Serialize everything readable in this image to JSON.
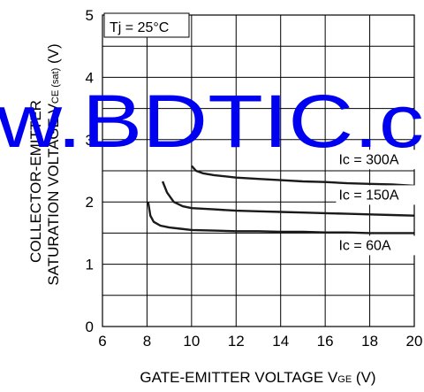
{
  "chart_data": {
    "type": "line",
    "ylabel_line1": "COLLECTOR-EMITTER",
    "ylabel_line2_main": "SATURATION VOLTAGE  V",
    "ylabel_line2_sub": "CE (sat)",
    "ylabel_line2_unit": " (V)",
    "xlabel_main": "GATE-EMITTER VOLTAGE  V",
    "xlabel_sub": "GE",
    "xlabel_unit": " (V)",
    "condition_label": "Tj = 25°C",
    "xlim": [
      6,
      20
    ],
    "ylim": [
      0,
      5
    ],
    "x_ticks": [
      "6",
      "8",
      "10",
      "12",
      "14",
      "16",
      "18",
      "20"
    ],
    "y_ticks": [
      "0",
      "1",
      "2",
      "3",
      "4",
      "5"
    ],
    "grid": true,
    "series": [
      {
        "name": "Ic = 300A",
        "x": [
          10.0,
          10.2,
          10.5,
          11,
          12,
          13,
          14,
          15,
          16,
          17,
          18,
          19,
          20
        ],
        "y": [
          2.58,
          2.5,
          2.46,
          2.43,
          2.39,
          2.37,
          2.35,
          2.33,
          2.32,
          2.3,
          2.29,
          2.28,
          2.26
        ]
      },
      {
        "name": "Ic = 150A",
        "x": [
          8.7,
          8.9,
          9.2,
          9.6,
          10,
          11,
          12,
          13,
          14,
          15,
          16,
          17,
          18,
          19,
          20
        ],
        "y": [
          2.33,
          2.15,
          2.0,
          1.93,
          1.9,
          1.88,
          1.86,
          1.85,
          1.84,
          1.83,
          1.82,
          1.81,
          1.8,
          1.79,
          1.78
        ]
      },
      {
        "name": "Ic = 60A",
        "x": [
          8.05,
          8.15,
          8.3,
          8.6,
          9,
          9.5,
          10,
          11,
          12,
          13,
          14,
          15,
          16,
          17,
          18,
          19,
          20
        ],
        "y": [
          2.0,
          1.78,
          1.68,
          1.62,
          1.59,
          1.57,
          1.55,
          1.54,
          1.53,
          1.53,
          1.52,
          1.52,
          1.51,
          1.51,
          1.5,
          1.5,
          1.5
        ]
      }
    ]
  },
  "watermark": {
    "text": "w.BDTIC.c",
    "color": "#0000f0"
  }
}
